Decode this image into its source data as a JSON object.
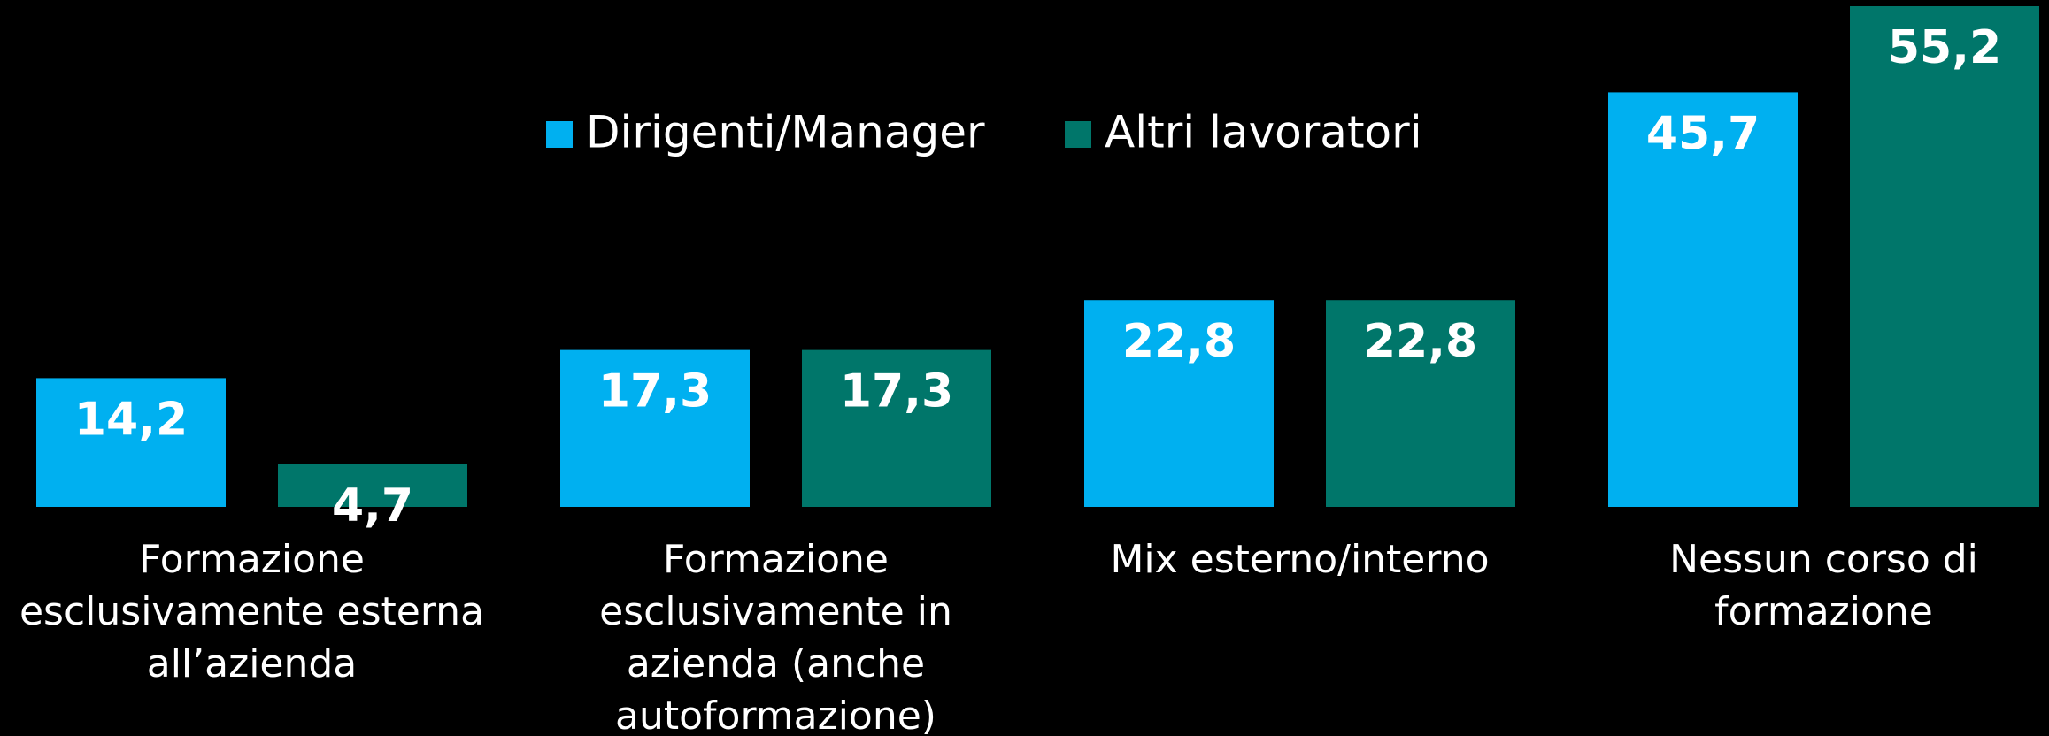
{
  "chart_data": {
    "type": "bar",
    "categories": [
      "Formazione esclusivamente esterna all’azienda",
      "Formazione esclusivamente in azienda (anche autoformazione)",
      "Mix esterno/interno",
      "Nessun corso di formazione"
    ],
    "series": [
      {
        "name": "Dirigenti/Manager",
        "color": "#00b0f0",
        "values": [
          14.2,
          17.3,
          22.8,
          45.7
        ],
        "value_labels": [
          "14,2",
          "17,3",
          "22,8",
          "45,7"
        ]
      },
      {
        "name": "Altri lavoratori",
        "color": "#00766a",
        "values": [
          4.7,
          17.3,
          22.8,
          55.2
        ],
        "value_labels": [
          "4,7",
          "17,3",
          "22,8",
          "55,2"
        ]
      }
    ],
    "legend": "top"
  }
}
